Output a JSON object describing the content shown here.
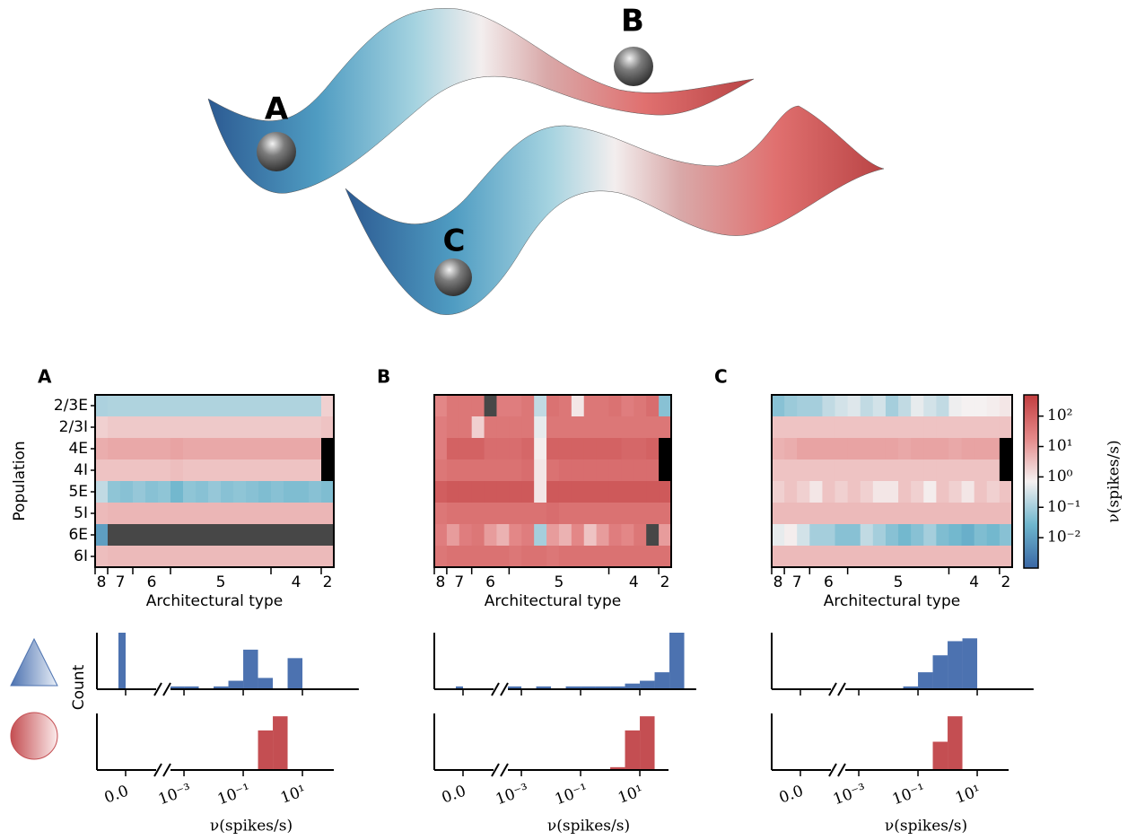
{
  "landscape": {
    "labels": [
      "A",
      "B",
      "C"
    ]
  },
  "chart_data": [
    {
      "type": "heatmap",
      "panel": "A",
      "ylabel": "Population",
      "xlabel": "Architectural type",
      "rows": [
        "2/3E",
        "2/3I",
        "4E",
        "4I",
        "5E",
        "5I",
        "6E",
        "6I"
      ],
      "columns": [
        "8",
        "7",
        "7",
        "6",
        "6",
        "6",
        "5",
        "5",
        "5",
        "5",
        "5",
        "5",
        "5",
        "5",
        "4",
        "4",
        "4",
        "4",
        "2"
      ],
      "values": [
        [
          0.12,
          0.13,
          0.13,
          0.13,
          0.13,
          0.13,
          0.13,
          0.13,
          0.13,
          0.13,
          0.13,
          0.13,
          0.13,
          0.13,
          0.13,
          0.13,
          0.13,
          0.13,
          2
        ],
        [
          2,
          2.5,
          2.5,
          2.5,
          2.5,
          2.5,
          2.5,
          2.5,
          2.5,
          2.5,
          2.5,
          2.5,
          2.5,
          2.5,
          2.5,
          2.5,
          2.5,
          2.5,
          3
        ],
        [
          6,
          7,
          7,
          7,
          7,
          7,
          8,
          7,
          7,
          7,
          7,
          7,
          7,
          7,
          7,
          7,
          7,
          7,
          null
        ],
        [
          3,
          3,
          3,
          3,
          3,
          3,
          3.5,
          3,
          3,
          3,
          3,
          3,
          3,
          3,
          3,
          3,
          3,
          3,
          null
        ],
        [
          0.2,
          0.06,
          0.05,
          0.07,
          0.05,
          0.06,
          0.03,
          0.06,
          0.05,
          0.07,
          0.05,
          0.06,
          0.05,
          0.04,
          0.05,
          0.04,
          0.04,
          0.05,
          0.04
        ],
        [
          4,
          4.5,
          4.5,
          4.5,
          4.5,
          4.5,
          4.5,
          4.5,
          4.5,
          4.5,
          4.5,
          4.5,
          4.5,
          4.5,
          4.5,
          4.5,
          4.5,
          4.5,
          4.5
        ],
        [
          0.01,
          0,
          0,
          0,
          0,
          0,
          0,
          0,
          0,
          0,
          0,
          0,
          0,
          0,
          0,
          0,
          0,
          0,
          0
        ],
        [
          3.5,
          4,
          4,
          4,
          4,
          4,
          4,
          4,
          4,
          4,
          4,
          4,
          4,
          4,
          4,
          4,
          4,
          4,
          4
        ]
      ]
    },
    {
      "type": "heatmap",
      "panel": "B",
      "xlabel": "Architectural type",
      "columns": [
        "8",
        "7",
        "7",
        "6",
        "6",
        "6",
        "5",
        "5",
        "5",
        "5",
        "5",
        "5",
        "5",
        "5",
        "4",
        "4",
        "4",
        "4",
        "2"
      ],
      "values": [
        [
          20,
          40,
          40,
          40,
          0,
          30,
          30,
          40,
          0.2,
          50,
          40,
          1,
          40,
          40,
          50,
          30,
          40,
          60,
          0.05
        ],
        [
          30,
          40,
          40,
          2,
          40,
          40,
          40,
          40,
          0.5,
          40,
          40,
          40,
          40,
          40,
          40,
          40,
          40,
          40,
          40
        ],
        [
          30,
          100,
          100,
          100,
          60,
          60,
          60,
          80,
          0.8,
          100,
          100,
          100,
          100,
          100,
          100,
          80,
          80,
          100,
          null
        ],
        [
          40,
          50,
          50,
          50,
          50,
          50,
          50,
          60,
          1,
          50,
          60,
          60,
          60,
          60,
          60,
          60,
          60,
          60,
          null
        ],
        [
          120,
          150,
          150,
          150,
          150,
          150,
          150,
          150,
          1,
          150,
          150,
          150,
          150,
          150,
          150,
          150,
          150,
          150,
          150
        ],
        [
          40,
          50,
          50,
          50,
          50,
          50,
          50,
          50,
          50,
          60,
          50,
          50,
          50,
          50,
          50,
          50,
          50,
          50,
          50
        ],
        [
          30,
          10,
          30,
          40,
          10,
          5,
          20,
          30,
          0.1,
          10,
          5,
          20,
          3,
          10,
          30,
          20,
          40,
          0,
          10
        ],
        [
          40,
          50,
          50,
          50,
          50,
          50,
          40,
          50,
          50,
          40,
          50,
          50,
          50,
          50,
          50,
          50,
          50,
          50,
          50
        ]
      ]
    },
    {
      "type": "heatmap",
      "panel": "C",
      "xlabel": "Architectural type",
      "columns": [
        "8",
        "7",
        "7",
        "6",
        "6",
        "6",
        "5",
        "5",
        "5",
        "5",
        "5",
        "5",
        "5",
        "5",
        "4",
        "4",
        "4",
        "4",
        "2"
      ],
      "values": [
        [
          0.05,
          0.08,
          0.1,
          0.1,
          0.2,
          0.3,
          0.4,
          0.2,
          0.3,
          0.1,
          0.2,
          0.5,
          0.3,
          0.2,
          0.6,
          0.7,
          0.7,
          0.8,
          1
        ],
        [
          3,
          3,
          3,
          3,
          3,
          3,
          3,
          3,
          3,
          3,
          3,
          3,
          3,
          3,
          3,
          3,
          3,
          3,
          3
        ],
        [
          5,
          6,
          8,
          8,
          8,
          8,
          8,
          8,
          8,
          8,
          7,
          8,
          8,
          8,
          7,
          8,
          8,
          8,
          null
        ],
        [
          3,
          3,
          3,
          3,
          3,
          3,
          3,
          3,
          3,
          3,
          3,
          3,
          3,
          3,
          3,
          3,
          3,
          3,
          null
        ],
        [
          2,
          3,
          2,
          1,
          3,
          2,
          3,
          2,
          1,
          1,
          3,
          2,
          0.8,
          3,
          2,
          1,
          3,
          2,
          3
        ],
        [
          4,
          4,
          4,
          4,
          4,
          4,
          4,
          4,
          4,
          4,
          4,
          4,
          4,
          4,
          4,
          4,
          4,
          4,
          4
        ],
        [
          0.5,
          0.8,
          0.3,
          0.1,
          0.1,
          0.05,
          0.05,
          0.2,
          0.1,
          0.05,
          0.03,
          0.05,
          0.1,
          0.04,
          0.03,
          0.02,
          0.04,
          0.03,
          0.05
        ],
        [
          4,
          4,
          4,
          4,
          4,
          4,
          4,
          4,
          4,
          4,
          4,
          4,
          4,
          4,
          4,
          4,
          4,
          4,
          4
        ]
      ]
    },
    {
      "type": "colorbar",
      "label": "ν(spikes/s)",
      "log": true,
      "lim": [
        0.001,
        500
      ],
      "ticks": [
        {
          "value": 0.01,
          "label": "10⁻²"
        },
        {
          "value": 0.1,
          "label": "10⁻¹"
        },
        {
          "value": 1,
          "label": "10⁰"
        },
        {
          "value": 10,
          "label": "10¹"
        },
        {
          "value": 100,
          "label": "10²"
        }
      ],
      "colormap": [
        "#3a67a5",
        "#6eb6cd",
        "#f5f1f1",
        "#e48888",
        "#c23d3f"
      ],
      "zero_color": "#474747",
      "missing_color": "#000000"
    },
    {
      "type": "histogram",
      "ylabel": "Count",
      "color": "#4c72b0",
      "log": true,
      "xlim": [
        0.00035,
        800
      ],
      "ylim": [
        0,
        20
      ],
      "xticks": [
        0,
        0.001,
        0.1,
        10
      ],
      "zero_count": 20,
      "bins": [
        0.000316,
        0.001,
        0.00316,
        0.01,
        0.0316,
        0.1,
        0.316,
        1,
        3.16,
        10,
        31.6,
        100,
        316,
        1000
      ],
      "counts": [
        1,
        1,
        0,
        1,
        3,
        14,
        4,
        0,
        11,
        0,
        0,
        0,
        0
      ]
    },
    {
      "type": "histogram",
      "xlabel": "ν(spikes/s)",
      "color": "#c44e52",
      "log": true,
      "xlim": [
        0.00035,
        115
      ],
      "ylim": [
        0,
        20
      ],
      "xticks": [
        {
          "value": 0,
          "label": "0.0"
        },
        {
          "value": 0.001,
          "label": "10⁻³"
        },
        {
          "value": 0.1,
          "label": "10⁻¹"
        },
        {
          "value": 10,
          "label": "10¹"
        }
      ],
      "zero_count": 0,
      "bins": [
        0.000316,
        0.001,
        0.00316,
        0.01,
        0.0316,
        0.1,
        0.316,
        1,
        3.16,
        10,
        31.6,
        100
      ],
      "counts": [
        0,
        0,
        0,
        0,
        0,
        0,
        14,
        19,
        0,
        0,
        0
      ]
    },
    {
      "type": "histogram",
      "color": "#4c72b0",
      "log": true,
      "xlim": [
        0.00035,
        800
      ],
      "ylim": [
        0,
        20
      ],
      "xticks": [
        0,
        0.001,
        0.1,
        10
      ],
      "zero_count": 1,
      "bins": [
        0.000316,
        0.001,
        0.00316,
        0.01,
        0.0316,
        0.1,
        0.316,
        1,
        3.16,
        10,
        31.6,
        100,
        316,
        1000
      ],
      "counts": [
        1,
        0,
        1,
        0,
        1,
        1,
        1,
        1,
        2,
        3,
        6,
        20,
        0
      ]
    },
    {
      "type": "histogram",
      "xlabel": "ν(spikes/s)",
      "color": "#c44e52",
      "log": true,
      "xlim": [
        0.00035,
        93
      ],
      "ylim": [
        0,
        20
      ],
      "xticks": [
        {
          "value": 0,
          "label": "0.0"
        },
        {
          "value": 0.001,
          "label": "10⁻³"
        },
        {
          "value": 0.1,
          "label": "10⁻¹"
        },
        {
          "value": 10,
          "label": "10¹"
        }
      ],
      "zero_count": 0,
      "bins": [
        0.000316,
        0.001,
        0.00316,
        0.01,
        0.0316,
        0.1,
        0.316,
        1,
        3.16,
        10,
        31.6,
        100
      ],
      "counts": [
        0,
        0,
        0,
        0,
        0,
        0,
        0,
        1,
        14,
        19,
        0
      ]
    },
    {
      "type": "histogram",
      "color": "#4c72b0",
      "log": true,
      "xlim": [
        0.00035,
        800
      ],
      "ylim": [
        0,
        20
      ],
      "xticks": [
        0,
        0.001,
        0.1,
        10
      ],
      "zero_count": 0,
      "bins": [
        0.000316,
        0.001,
        0.00316,
        0.01,
        0.0316,
        0.1,
        0.316,
        1,
        3.16,
        10,
        31.6,
        100,
        316,
        1000
      ],
      "counts": [
        0,
        0,
        0,
        0,
        1,
        6,
        12,
        17,
        18,
        0,
        0,
        0,
        0
      ]
    },
    {
      "type": "histogram",
      "xlabel": "ν(spikes/s)",
      "color": "#c44e52",
      "log": true,
      "xlim": [
        0.00035,
        115
      ],
      "ylim": [
        0,
        20
      ],
      "xticks": [
        {
          "value": 0,
          "label": "0.0"
        },
        {
          "value": 0.001,
          "label": "10⁻³"
        },
        {
          "value": 0.1,
          "label": "10⁻¹"
        },
        {
          "value": 10,
          "label": "10¹"
        }
      ],
      "zero_count": 0,
      "bins": [
        0.000316,
        0.001,
        0.00316,
        0.01,
        0.0316,
        0.1,
        0.316,
        1,
        3.16,
        10,
        31.6,
        100
      ],
      "counts": [
        0,
        0,
        0,
        0,
        0,
        0,
        10,
        19,
        0,
        0,
        0
      ]
    }
  ]
}
